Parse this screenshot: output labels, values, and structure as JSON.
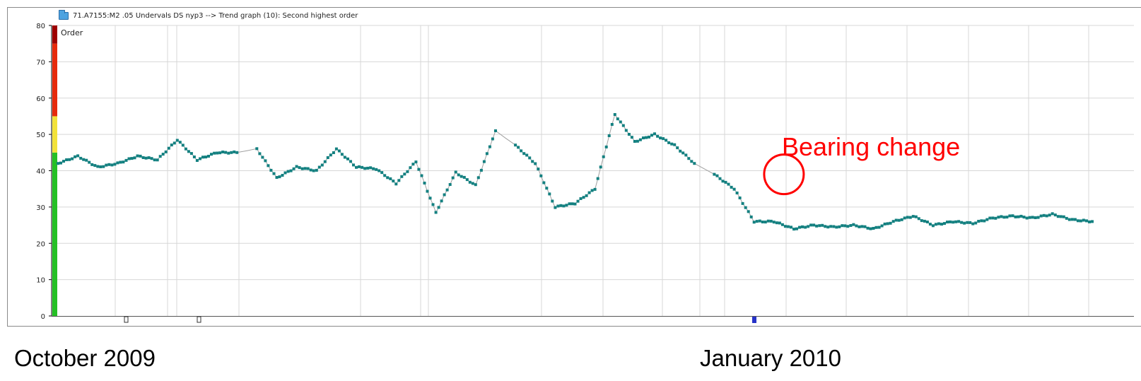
{
  "window": {
    "title": "71.A7155:M2 .05 Undervals DS nyp3 --> Trend graph (10): Second highest order",
    "icon": "folder-icon"
  },
  "bottom_labels": {
    "left": "October 2009",
    "right": "January 2010"
  },
  "annotation": {
    "text": "Bearing change",
    "color": "#ff0000"
  },
  "colors": {
    "series": "#138080",
    "gap_line": "#a0a0a0",
    "grid": "#d7d7d7",
    "alarm_red": "#e62a0c",
    "alarm_darkred": "#9e0000",
    "alarm_yellow": "#f2e23a",
    "alarm_green": "#25c025",
    "marker_blue": "#2733c8"
  },
  "chart_data": {
    "type": "scatter",
    "title": "71.A7155:M2 .05 Undervals DS nyp3 --> Trend graph (10): Second highest order",
    "ylabel": "Order",
    "xlabel": "",
    "ylim": [
      0,
      80
    ],
    "yticks": [
      0,
      10,
      20,
      30,
      40,
      50,
      60,
      70,
      80
    ],
    "grid": true,
    "alarm_bands": [
      {
        "from": 0,
        "to": 45,
        "color": "green"
      },
      {
        "from": 45,
        "to": 55,
        "color": "yellow"
      },
      {
        "from": 55,
        "to": 75,
        "color": "red"
      },
      {
        "from": 75,
        "to": 80,
        "color": "darkred"
      }
    ],
    "x_axis_labels": [
      "October 2009",
      "January 2010"
    ],
    "annotations": [
      {
        "text": "Bearing change",
        "at_sample": 36.5,
        "value": 39
      }
    ],
    "series": [
      {
        "x": [
          0,
          1,
          2,
          3,
          4,
          5,
          6,
          7,
          8,
          9,
          10,
          11,
          12,
          13,
          14,
          15,
          16,
          17,
          18,
          19,
          20,
          21,
          22,
          23,
          24,
          25,
          26,
          27,
          28,
          29,
          30,
          31,
          32,
          33,
          34,
          35,
          36,
          37,
          38,
          39,
          40,
          41,
          42,
          43,
          44,
          45,
          46,
          47,
          48,
          49,
          50,
          51,
          52
        ],
        "values": [
          42,
          44,
          41,
          42,
          44,
          43,
          48.5,
          43,
          45,
          45,
          46,
          38,
          41,
          40,
          46,
          41,
          40.5,
          36.5,
          42.5,
          28.5,
          39.5,
          36,
          51,
          47,
          42,
          30,
          31,
          35,
          55.5,
          48,
          50,
          47,
          42,
          39,
          35,
          26,
          26,
          24,
          25,
          24.5,
          25,
          24,
          26,
          27.5,
          25,
          26,
          25.5,
          27,
          27.5,
          27,
          28,
          26.5,
          26
        ]
      }
    ]
  }
}
